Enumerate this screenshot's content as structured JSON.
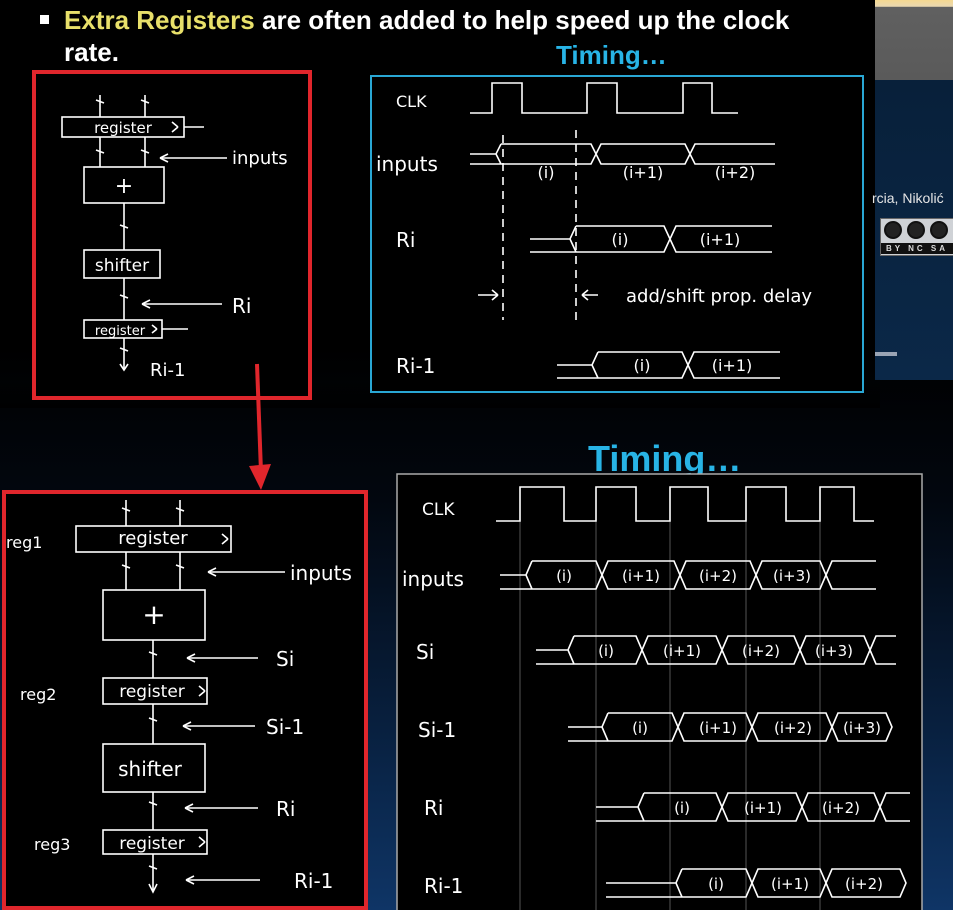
{
  "slide": {
    "bullet_highlight": "Extra Registers",
    "bullet_rest": " are often added to help speed up the clock rate.",
    "timing_small": "Timing…",
    "timing_large": "Timing…",
    "background_author": "rcia, Nikolić",
    "cc_label": "BY NC SA"
  },
  "colors": {
    "highlight": "#e8e06a",
    "timing": "#28b4e6",
    "box_red": "#e0262c",
    "box_cyan": "#29a7d4",
    "chalk": "#ffffff"
  },
  "diagram1": {
    "register_top": "register",
    "plus": "+",
    "shifter": "shifter",
    "register_bottom": "register",
    "inputs": "inputs",
    "ri": "Ri",
    "ri_1": "Ri-1"
  },
  "timing1": {
    "rows": [
      "CLK",
      "inputs",
      "Ri",
      "Ri-1"
    ],
    "inputs_cells": [
      "(i)",
      "(i+1)",
      "(i+2)"
    ],
    "ri_cells": [
      "(i)",
      "(i+1)"
    ],
    "ri1_cells": [
      "(i)",
      "(i+1)"
    ],
    "delay_label": "add/shift prop. delay"
  },
  "diagram2": {
    "reg1": "reg1",
    "reg2": "reg2",
    "reg3": "reg3",
    "register_1": "register",
    "plus": "+",
    "register_2": "register",
    "shifter": "shifter",
    "register_3": "register",
    "inputs": "inputs",
    "si": "Si",
    "si_1": "Si-1",
    "ri": "Ri",
    "ri_1": "Ri-1"
  },
  "timing2": {
    "rows": [
      "CLK",
      "inputs",
      "Si",
      "Si-1",
      "Ri",
      "Ri-1"
    ],
    "inputs_cells": [
      "(i)",
      "(i+1)",
      "(i+2)",
      "(i+3)"
    ],
    "si_cells": [
      "(i)",
      "(i+1)",
      "(i+2)",
      "(i+3)"
    ],
    "si1_cells": [
      "(i)",
      "(i+1)",
      "(i+2)",
      "(i+3)"
    ],
    "ri_cells": [
      "(i)",
      "(i+1)",
      "(i+2)"
    ],
    "ri1_cells": [
      "(i)",
      "(i+1)",
      "(i+2)"
    ]
  }
}
